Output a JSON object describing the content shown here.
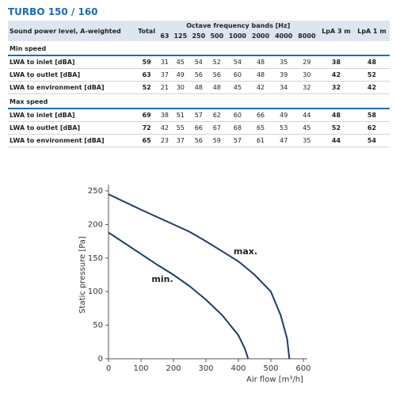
{
  "title": "TURBO 150 / 160",
  "table": {
    "header": {
      "label": "Sound power level, A-weighted",
      "total": "Total",
      "bands_title": "Octave frequency bands [Hz]",
      "bands": [
        "63",
        "125",
        "250",
        "500",
        "1000",
        "2000",
        "4000",
        "8000"
      ],
      "lpa3": "LpA 3 m",
      "lpa1": "LpA 1 m"
    },
    "sections": [
      {
        "title": "Min speed",
        "rows": [
          {
            "label": "LWA to inlet [dBA]",
            "values": [
              59,
              31,
              45,
              54,
              52,
              54,
              48,
              35,
              29,
              38,
              48
            ]
          },
          {
            "label": "LWA to outlet [dBA]",
            "values": [
              63,
              37,
              49,
              56,
              56,
              60,
              48,
              39,
              30,
              42,
              52
            ]
          },
          {
            "label": "LWA to environment [dBA]",
            "values": [
              52,
              21,
              30,
              48,
              48,
              45,
              42,
              34,
              32,
              32,
              42
            ]
          }
        ]
      },
      {
        "title": "Max speed",
        "rows": [
          {
            "label": "LWA to inlet [dBA]",
            "values": [
              69,
              38,
              51,
              57,
              62,
              60,
              66,
              49,
              44,
              48,
              58
            ]
          },
          {
            "label": "LWA to outlet [dBA]",
            "values": [
              72,
              42,
              55,
              66,
              67,
              68,
              65,
              53,
              45,
              52,
              62
            ]
          },
          {
            "label": "LWA to environment [dBA]",
            "values": [
              65,
              23,
              37,
              56,
              59,
              57,
              61,
              47,
              35,
              44,
              54
            ]
          }
        ]
      }
    ]
  },
  "chart_data": {
    "type": "line",
    "x_label": "Air flow [m³/h]",
    "y_label": "Static pressure [Pa]",
    "xlim": [
      0,
      600
    ],
    "xticks": [
      0,
      100,
      200,
      300,
      400,
      500,
      600
    ],
    "ylim": [
      0,
      250
    ],
    "yticks": [
      0,
      50,
      100,
      150,
      200,
      250
    ],
    "series": [
      {
        "name": "max.",
        "color": "#1d3c6b",
        "x": [
          0,
          100,
          200,
          250,
          300,
          350,
          400,
          450,
          500,
          530,
          550,
          557
        ],
        "values": [
          245,
          222,
          200,
          189,
          175,
          160,
          145,
          125,
          100,
          65,
          30,
          0
        ]
      },
      {
        "name": "min.",
        "color": "#1d3c6b",
        "x": [
          0,
          50,
          100,
          150,
          200,
          250,
          300,
          350,
          400,
          420,
          430
        ],
        "values": [
          188,
          172,
          156,
          140,
          125,
          108,
          88,
          65,
          35,
          15,
          0
        ]
      }
    ]
  }
}
